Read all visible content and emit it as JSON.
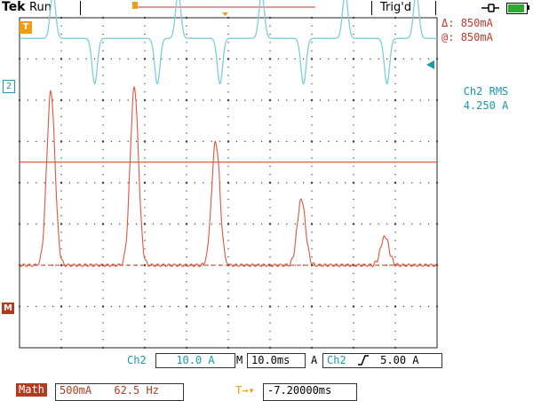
{
  "header": {
    "brand": "Tek",
    "status": "Run",
    "trigger_status": "Trig'd"
  },
  "cursor_readout": {
    "delta_symbol": "Δ:",
    "delta_value": "850mA",
    "at_symbol": "@:",
    "at_value": "850mA"
  },
  "measurement": {
    "label": "Ch2 RMS",
    "value": "4.250 A"
  },
  "markers": {
    "trigger_marker": "T",
    "ch2_marker": "2",
    "math_marker": "M"
  },
  "settings_bar": {
    "ch_label": "Ch2",
    "ch_scale": "10.0 A",
    "timebase_label": "M",
    "timebase_value": "10.0ms",
    "trigger_mode": "A",
    "trigger_source": "Ch2",
    "trigger_slope": "rising-edge-icon",
    "trigger_level": "5.00 A"
  },
  "math_bar": {
    "label": "Math",
    "scale": "500mA",
    "frequency": "62.5 Hz",
    "offset_icon": "T→▾",
    "offset_value": "-7.20000ms"
  },
  "colors": {
    "ch2": "#7ccfd8",
    "math": "#e2553a",
    "math_dark": "#b23b1f",
    "trigger": "#f39c12",
    "battery": "#2fa82f"
  },
  "chart_data": {
    "type": "line",
    "title": "",
    "xlabel": "",
    "ylabel": "",
    "grid": true,
    "time_per_div_ms": 10.0,
    "divisions_x": 10,
    "divisions_y": 8,
    "series": [
      {
        "name": "Ch2",
        "color": "#7ccfd8",
        "description_of_shape": "alternating positive/negative current pulses on a zero baseline",
        "peaks_x_div": [
          0.8,
          3.8,
          5.8,
          7.8,
          9.5
        ],
        "peak_sign": [
          1,
          1,
          1,
          1,
          1
        ],
        "troughs_x_div": [
          1.8,
          3.3,
          4.8,
          6.8,
          8.8
        ],
        "amplitude_div": 1.1,
        "baseline_div": 3.5
      },
      {
        "name": "Math",
        "color": "#e2553a",
        "peaks_x_div": [
          0.75,
          2.75,
          4.7,
          6.75,
          8.75
        ],
        "peak_heights_div": [
          4.2,
          4.3,
          3.0,
          1.6,
          0.7
        ],
        "baseline_div": -2.0,
        "reference_level_div": 0.5
      }
    ]
  }
}
